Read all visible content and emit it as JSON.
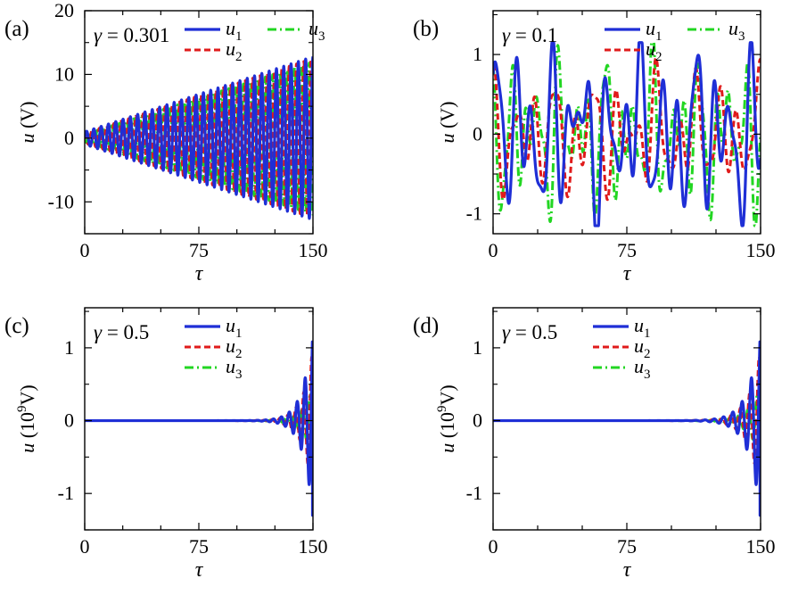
{
  "figure": {
    "legend_colors": {
      "u1": "#1f2fd6",
      "u2": "#e01b1b",
      "u3": "#22d622"
    }
  },
  "chart_data": [
    {
      "type": "line",
      "panel": "(a)",
      "annotation": "γ = 0.301",
      "gamma_symbol": "γ",
      "gamma_value": "= 0.301",
      "xlabel": "τ",
      "ylabel": "u",
      "ylabel_unit": " (V)",
      "xlim": [
        0,
        150
      ],
      "ylim": [
        -15,
        20
      ],
      "xticks": [
        0,
        75,
        150
      ],
      "xtick_labels": [
        "0",
        "75",
        "150"
      ],
      "yticks": [
        20,
        10,
        0,
        -10
      ],
      "ytick_labels": [
        "20",
        "10",
        "0",
        "-10"
      ],
      "legend_layout": "two-column",
      "legend": [
        {
          "base": "u",
          "sub": "1",
          "style": "solid",
          "color": "#1f2fd6"
        },
        {
          "base": "u",
          "sub": "2",
          "style": "dashed",
          "color": "#e01b1b"
        },
        {
          "base": "u",
          "sub": "3",
          "style": "dash-dot",
          "color": "#22d622"
        }
      ],
      "series": [
        {
          "name": "u1",
          "behavior": "growing oscillation",
          "period": 4.8,
          "phase": 0.0,
          "amplitude_start": 1.0,
          "amplitude_end": 12.8
        },
        {
          "name": "u2",
          "behavior": "growing oscillation",
          "period": 4.8,
          "phase": 1.6,
          "amplitude_start": 0.8,
          "amplitude_end": 12.5
        },
        {
          "name": "u3",
          "behavior": "growing oscillation",
          "period": 4.8,
          "phase": 3.2,
          "amplitude_start": 0.6,
          "amplitude_end": 12.0
        }
      ]
    },
    {
      "type": "line",
      "panel": "(b)",
      "annotation": "γ = 0.1",
      "gamma_symbol": "γ",
      "gamma_value": "= 0.1",
      "xlabel": "τ",
      "ylabel": "u",
      "ylabel_unit": " (V)",
      "xlim": [
        0,
        150
      ],
      "ylim": [
        -1.25,
        1.55
      ],
      "xticks": [
        0,
        75,
        150
      ],
      "xtick_labels": [
        "0",
        "75",
        "150"
      ],
      "yticks": [
        1,
        0,
        -1
      ],
      "ytick_labels": [
        "1",
        "0",
        "-1"
      ],
      "legend_layout": "two-column",
      "legend": [
        {
          "base": "u",
          "sub": "1",
          "style": "solid",
          "color": "#1f2fd6"
        },
        {
          "base": "u",
          "sub": "2",
          "style": "dashed",
          "color": "#e01b1b"
        },
        {
          "base": "u",
          "sub": "3",
          "style": "dash-dot",
          "color": "#22d622"
        }
      ],
      "series": [
        {
          "name": "u1",
          "behavior": "bounded quasi-periodic oscillation",
          "amplitude": 1.0
        },
        {
          "name": "u2",
          "behavior": "bounded quasi-periodic oscillation",
          "amplitude": 0.8
        },
        {
          "name": "u3",
          "behavior": "bounded quasi-periodic oscillation",
          "amplitude": 1.0
        }
      ]
    },
    {
      "type": "line",
      "panel": "(c)",
      "annotation": "γ = 0.5",
      "gamma_symbol": "γ",
      "gamma_value": "= 0.5",
      "xlabel": "τ",
      "ylabel": "u",
      "ylabel_unit_pre": " (10",
      "ylabel_unit_sup": "9",
      "ylabel_unit_post": "V)",
      "xlim": [
        0,
        150
      ],
      "ylim": [
        -1.5,
        1.55
      ],
      "xticks": [
        0,
        75,
        150
      ],
      "xtick_labels": [
        "0",
        "75",
        "150"
      ],
      "yticks": [
        1,
        0,
        -1
      ],
      "ytick_labels": [
        "1",
        "0",
        "-1"
      ],
      "legend_layout": "single-column",
      "legend": [
        {
          "base": "u",
          "sub": "1",
          "style": "solid",
          "color": "#1f2fd6"
        },
        {
          "base": "u",
          "sub": "2",
          "style": "dashed",
          "color": "#e01b1b"
        },
        {
          "base": "u",
          "sub": "3",
          "style": "dash-dot",
          "color": "#22d622"
        }
      ],
      "series": [
        {
          "name": "u1",
          "behavior": "exponential blow-up near end",
          "final_peak": 1.3,
          "final_value": -1.3
        },
        {
          "name": "u2",
          "behavior": "exponential blow-up near end",
          "final_peak": 1.0
        },
        {
          "name": "u3",
          "behavior": "exponential blow-up near end",
          "final_peak": 0.5
        }
      ]
    },
    {
      "type": "line",
      "panel": "(d)",
      "annotation": "γ = 0.5",
      "gamma_symbol": "γ",
      "gamma_value": "= 0.5",
      "xlabel": "τ",
      "ylabel": "u",
      "ylabel_unit_pre": " (10",
      "ylabel_unit_sup": "9",
      "ylabel_unit_post": "V)",
      "xlim": [
        0,
        150
      ],
      "ylim": [
        -1.5,
        1.55
      ],
      "xticks": [
        0,
        75,
        150
      ],
      "xtick_labels": [
        "0",
        "75",
        "150"
      ],
      "yticks": [
        1,
        0,
        -1
      ],
      "ytick_labels": [
        "1",
        "0",
        "-1"
      ],
      "legend_layout": "single-column",
      "legend": [
        {
          "base": "u",
          "sub": "1",
          "style": "solid",
          "color": "#1f2fd6"
        },
        {
          "base": "u",
          "sub": "2",
          "style": "dashed",
          "color": "#e01b1b"
        },
        {
          "base": "u",
          "sub": "3",
          "style": "dash-dot",
          "color": "#22d622"
        }
      ],
      "series": [
        {
          "name": "u1",
          "behavior": "exponential blow-up near end",
          "final_peak": 1.3,
          "final_value": -1.3
        },
        {
          "name": "u2",
          "behavior": "exponential blow-up near end",
          "final_peak": 1.0
        },
        {
          "name": "u3",
          "behavior": "exponential blow-up near end",
          "final_peak": 0.5
        }
      ]
    }
  ]
}
